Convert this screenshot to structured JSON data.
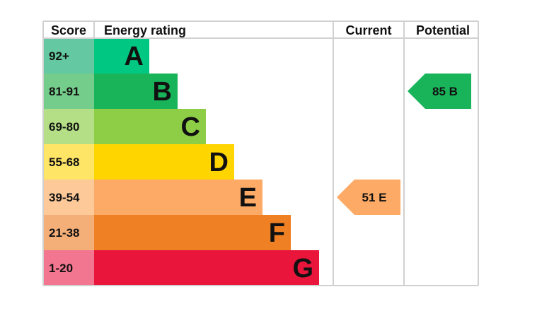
{
  "chart_data": {
    "type": "bar",
    "headers": {
      "score": "Score",
      "rating": "Energy rating",
      "current": "Current",
      "potential": "Potential"
    },
    "bands": [
      {
        "letter": "A",
        "range": "92+",
        "color": "#00c781",
        "light": "#64c8a2"
      },
      {
        "letter": "B",
        "range": "81-91",
        "color": "#19b459",
        "light": "#75cd8b"
      },
      {
        "letter": "C",
        "range": "69-80",
        "color": "#8dce46",
        "light": "#b4df86"
      },
      {
        "letter": "D",
        "range": "55-68",
        "color": "#ffd500",
        "light": "#ffe566"
      },
      {
        "letter": "E",
        "range": "39-54",
        "color": "#fcaa65",
        "light": "#fdc999"
      },
      {
        "letter": "F",
        "range": "21-38",
        "color": "#ef8023",
        "light": "#f4ae78"
      },
      {
        "letter": "G",
        "range": "1-20",
        "color": "#e9153b",
        "light": "#f27690"
      }
    ],
    "current": {
      "score": 51,
      "band": "E",
      "label": "51  E"
    },
    "potential": {
      "score": 85,
      "band": "B",
      "label": "85  B"
    }
  }
}
